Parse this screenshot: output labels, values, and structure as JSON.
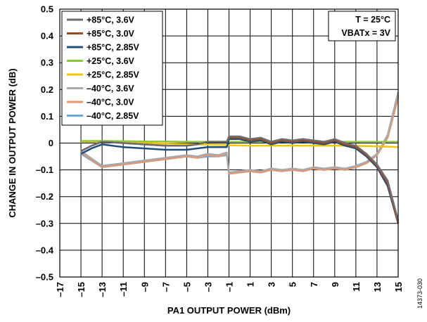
{
  "chart_data": {
    "type": "line",
    "xlabel": "PA1 OUTPUT POWER (dBm)",
    "ylabel": "CHANGE IN OUTPUT POWER (dB)",
    "xlim": [
      -17,
      15
    ],
    "ylim": [
      -0.5,
      0.5
    ],
    "xticks": [
      -17,
      -15,
      -13,
      -11,
      -9,
      -7,
      -5,
      -3,
      -1,
      1,
      3,
      5,
      7,
      9,
      11,
      13,
      15
    ],
    "xtick_labels": [
      "–17",
      "–15",
      "–13",
      "–11",
      "–9",
      "–7",
      "–5",
      "–3",
      "–1",
      "1",
      "3",
      "5",
      "7",
      "9",
      "11",
      "13",
      "15"
    ],
    "yticks": [
      -0.5,
      -0.4,
      -0.3,
      -0.2,
      -0.1,
      0,
      0.1,
      0.2,
      0.3,
      0.4,
      0.5
    ],
    "ytick_labels": [
      "–0.5",
      "–0.4",
      "–0.3",
      "–0.2",
      "–0.1",
      "0",
      "0.1",
      "0.2",
      "0.3",
      "0.4",
      "0.5"
    ],
    "grid": true,
    "legend_position": "top-left",
    "annotations": [
      "T = 25°C",
      "VBATx = 3V"
    ],
    "figure_id": "14373-030",
    "series": [
      {
        "name": "+85°C, 3.6V",
        "color": "#6d6e71",
        "x": [
          -15,
          -14,
          -13,
          -11,
          -9,
          -7,
          -5,
          -4,
          -3,
          -2,
          -1.2,
          -1,
          0,
          1,
          2,
          3,
          4,
          5,
          6,
          7,
          8,
          9,
          10,
          11,
          12,
          13,
          14,
          15
        ],
        "y": [
          -0.03,
          -0.01,
          0.005,
          0,
          -0.005,
          -0.01,
          -0.01,
          -0.005,
          0.005,
          0.005,
          0.005,
          0.025,
          0.025,
          0.015,
          0.02,
          0.005,
          0.015,
          0.01,
          0.015,
          0.01,
          0.005,
          0.015,
          0.0,
          -0.01,
          -0.04,
          -0.08,
          -0.14,
          -0.29
        ]
      },
      {
        "name": "+85°C, 3.0V",
        "color": "#9b4a25",
        "x": [
          -15,
          -14,
          -13,
          -11,
          -9,
          -7,
          -5,
          -4,
          -3,
          -2,
          -1.2,
          -1,
          0,
          1,
          2,
          3,
          4,
          5,
          6,
          7,
          8,
          9,
          10,
          11,
          12,
          13,
          14,
          15
        ],
        "y": [
          -0.03,
          -0.01,
          0.005,
          0,
          -0.005,
          -0.01,
          -0.01,
          -0.005,
          0.005,
          0.005,
          0.005,
          0.02,
          0.02,
          0.01,
          0.015,
          0.0,
          0.01,
          0.005,
          0.01,
          0.005,
          0.0,
          0.01,
          -0.005,
          -0.015,
          -0.045,
          -0.085,
          -0.15,
          -0.3
        ]
      },
      {
        "name": "+85°C, 2.85V",
        "color": "#1f4e79",
        "x": [
          -15,
          -14,
          -13,
          -11,
          -9,
          -7,
          -5,
          -4,
          -3,
          -2,
          -1.2,
          -1,
          0,
          1,
          2,
          3,
          4,
          5,
          6,
          7,
          8,
          9,
          10,
          11,
          12,
          13,
          14,
          15
        ],
        "y": [
          -0.04,
          -0.02,
          -0.005,
          -0.015,
          -0.02,
          -0.025,
          -0.025,
          -0.02,
          -0.015,
          -0.015,
          -0.015,
          0.015,
          0.015,
          0.005,
          0.01,
          -0.005,
          0.005,
          0.0,
          0.005,
          0.0,
          -0.005,
          0.005,
          -0.01,
          -0.02,
          -0.05,
          -0.09,
          -0.16,
          -0.3
        ]
      },
      {
        "name": "+25°C, 3.6V",
        "color": "#8dc63f",
        "x": [
          -15,
          -13,
          -11,
          -9,
          -7,
          -5,
          -3,
          -1,
          1,
          3,
          5,
          7,
          9,
          11,
          13,
          15
        ],
        "y": [
          0.008,
          0.008,
          0.007,
          0.006,
          0.006,
          0.005,
          0.005,
          0.005,
          0.005,
          0.005,
          0.005,
          0.005,
          0.005,
          0.005,
          0.005,
          0.005
        ]
      },
      {
        "name": "+25°C, 2.85V",
        "color": "#f2c500",
        "x": [
          -15,
          -13,
          -11,
          -9,
          -7,
          -5,
          -3,
          -1,
          1,
          3,
          5,
          7,
          9,
          11,
          13,
          15
        ],
        "y": [
          0.005,
          0.004,
          0.002,
          0.0,
          -0.002,
          -0.004,
          -0.006,
          -0.008,
          -0.01,
          -0.01,
          -0.01,
          -0.01,
          -0.01,
          -0.01,
          -0.012,
          -0.015
        ]
      },
      {
        "name": "–40°C, 3.6V",
        "color": "#a7a9ac",
        "x": [
          -15,
          -13,
          -11,
          -9,
          -7,
          -5,
          -4,
          -3,
          -2,
          -1.2,
          -1,
          0,
          1,
          2,
          3,
          4,
          5,
          6,
          7,
          8,
          9,
          10,
          11,
          12,
          13,
          14,
          15
        ],
        "y": [
          -0.03,
          -0.085,
          -0.075,
          -0.065,
          -0.055,
          -0.045,
          -0.05,
          -0.04,
          -0.045,
          -0.035,
          -0.11,
          -0.105,
          -0.1,
          -0.105,
          -0.095,
          -0.1,
          -0.095,
          -0.1,
          -0.09,
          -0.095,
          -0.09,
          -0.095,
          -0.085,
          -0.07,
          -0.04,
          0.03,
          0.19
        ]
      },
      {
        "name": "–40°C, 3.0V",
        "color": "#e8956b",
        "x": [
          -15,
          -13,
          -11,
          -9,
          -7,
          -5,
          -4,
          -3,
          -2,
          -1.2,
          -1,
          0,
          1,
          2,
          3,
          4,
          5,
          6,
          7,
          8,
          9,
          10,
          11,
          12,
          13,
          14,
          15
        ],
        "y": [
          -0.035,
          -0.09,
          -0.08,
          -0.07,
          -0.06,
          -0.05,
          -0.055,
          -0.045,
          -0.05,
          -0.04,
          -0.115,
          -0.11,
          -0.105,
          -0.11,
          -0.1,
          -0.105,
          -0.1,
          -0.105,
          -0.095,
          -0.1,
          -0.095,
          -0.1,
          -0.09,
          -0.075,
          -0.045,
          0.02,
          0.17
        ]
      },
      {
        "name": "–40°C, 2.85V",
        "color": "#6ca6dc",
        "x": [
          -15,
          -13,
          -11,
          -9,
          -7,
          -5,
          -4,
          -3,
          -2,
          -1.2,
          -1,
          0,
          1,
          2,
          3,
          4,
          5,
          6,
          7,
          8,
          9,
          10,
          11,
          12,
          13,
          14,
          15
        ],
        "y": [
          -0.04,
          -0.09,
          -0.08,
          -0.07,
          -0.06,
          -0.05,
          -0.055,
          -0.05,
          -0.05,
          -0.045,
          -0.115,
          -0.11,
          -0.105,
          -0.11,
          -0.1,
          -0.105,
          -0.1,
          -0.105,
          -0.095,
          -0.1,
          -0.095,
          -0.1,
          -0.09,
          -0.075,
          -0.045,
          0.02,
          0.18
        ]
      }
    ]
  }
}
